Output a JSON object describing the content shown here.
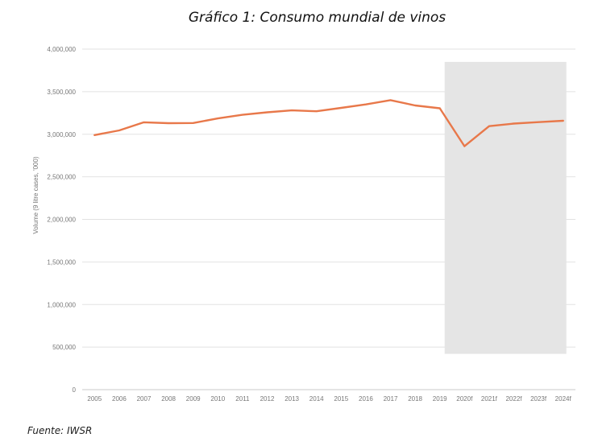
{
  "title": "Gráfico 1: Consumo mundial de vinos",
  "source": "Fuente: IWSR",
  "colors": {
    "line": "#e8784a",
    "grid": "#e2e2e2",
    "forecast_shade": "#e5e5e5",
    "text": "#777777"
  },
  "chart_data": {
    "type": "line",
    "title": "Gráfico 1: Consumo mundial de vinos",
    "xlabel": "",
    "ylabel": "Volume (9 litre cases, '000)",
    "ylim": [
      0,
      4000000
    ],
    "yticks": [
      0,
      500000,
      1000000,
      1500000,
      2000000,
      2500000,
      3000000,
      3500000,
      4000000
    ],
    "ytick_labels": [
      "0",
      "500,000",
      "1,000,000",
      "1,500,000",
      "2,000,000",
      "2,500,000",
      "3,000,000",
      "3,500,000",
      "4,000,000"
    ],
    "categories": [
      "2005",
      "2006",
      "2007",
      "2008",
      "2009",
      "2010",
      "2011",
      "2012",
      "2013",
      "2014",
      "2015",
      "2016",
      "2017",
      "2018",
      "2019",
      "2020f",
      "2021f",
      "2022f",
      "2023f",
      "2024f"
    ],
    "series": [
      {
        "values": [
          2990000,
          3045000,
          3140000,
          3130000,
          3132000,
          3186000,
          3228000,
          3258000,
          3280000,
          3270000,
          3310000,
          3350000,
          3400000,
          3338000,
          3305000,
          2860000,
          3095000,
          3125000,
          3142000,
          3158000
        ]
      }
    ],
    "shaded_region": {
      "from": "2019",
      "to": "2024f",
      "y_top": 3850000,
      "y_bottom": 420000
    },
    "grid": true,
    "legend": "none"
  }
}
